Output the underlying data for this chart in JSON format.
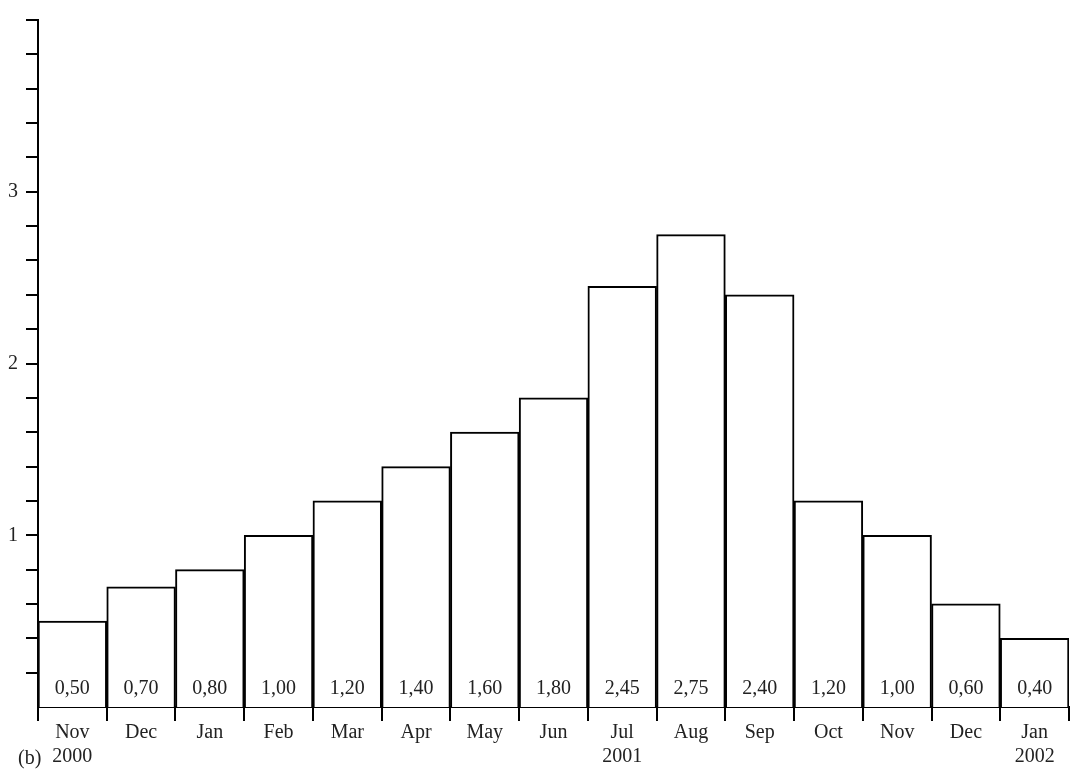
{
  "chart_data": {
    "type": "bar",
    "categories": [
      "Nov\n2000",
      "Dec",
      "Jan",
      "Feb",
      "Mar",
      "Apr",
      "May",
      "Jun",
      "Jul\n2001",
      "Aug",
      "Sep",
      "Oct",
      "Nov",
      "Dec",
      "Jan\n2002"
    ],
    "values": [
      0.5,
      0.7,
      0.8,
      1.0,
      1.2,
      1.4,
      1.6,
      1.8,
      2.45,
      2.75,
      2.4,
      1.2,
      1.0,
      0.6,
      0.4
    ],
    "value_labels": [
      "0,50",
      "0,70",
      "0,80",
      "1,00",
      "1,20",
      "1,40",
      "1,60",
      "1,80",
      "2,45",
      "2,75",
      "2,40",
      "1,20",
      "1,00",
      "0,60",
      "0,40"
    ],
    "color": "#ffffff",
    "ylim": [
      0,
      4
    ],
    "yticks": [
      {
        "value": 0.2,
        "label": null
      },
      {
        "value": 0.4,
        "label": null
      },
      {
        "value": 0.6,
        "label": null
      },
      {
        "value": 0.8,
        "label": null
      },
      1,
      {
        "value": 1.2,
        "label": null
      },
      {
        "value": 1.4,
        "label": null
      },
      {
        "value": 1.6,
        "label": null
      },
      {
        "value": 1.8,
        "label": null
      },
      2,
      {
        "value": 2.2,
        "label": null
      },
      {
        "value": 2.4,
        "label": null
      },
      {
        "value": 2.6,
        "label": null
      },
      {
        "value": 2.8,
        "label": null
      },
      3,
      {
        "value": 3.2,
        "label": null
      },
      {
        "value": 3.4,
        "label": null
      },
      {
        "value": 3.6,
        "label": null
      },
      {
        "value": 3.8,
        "label": null
      },
      {
        "value": 4,
        "label": null
      }
    ],
    "grid": false,
    "legend": false,
    "annotations": [
      "(b)"
    ]
  }
}
